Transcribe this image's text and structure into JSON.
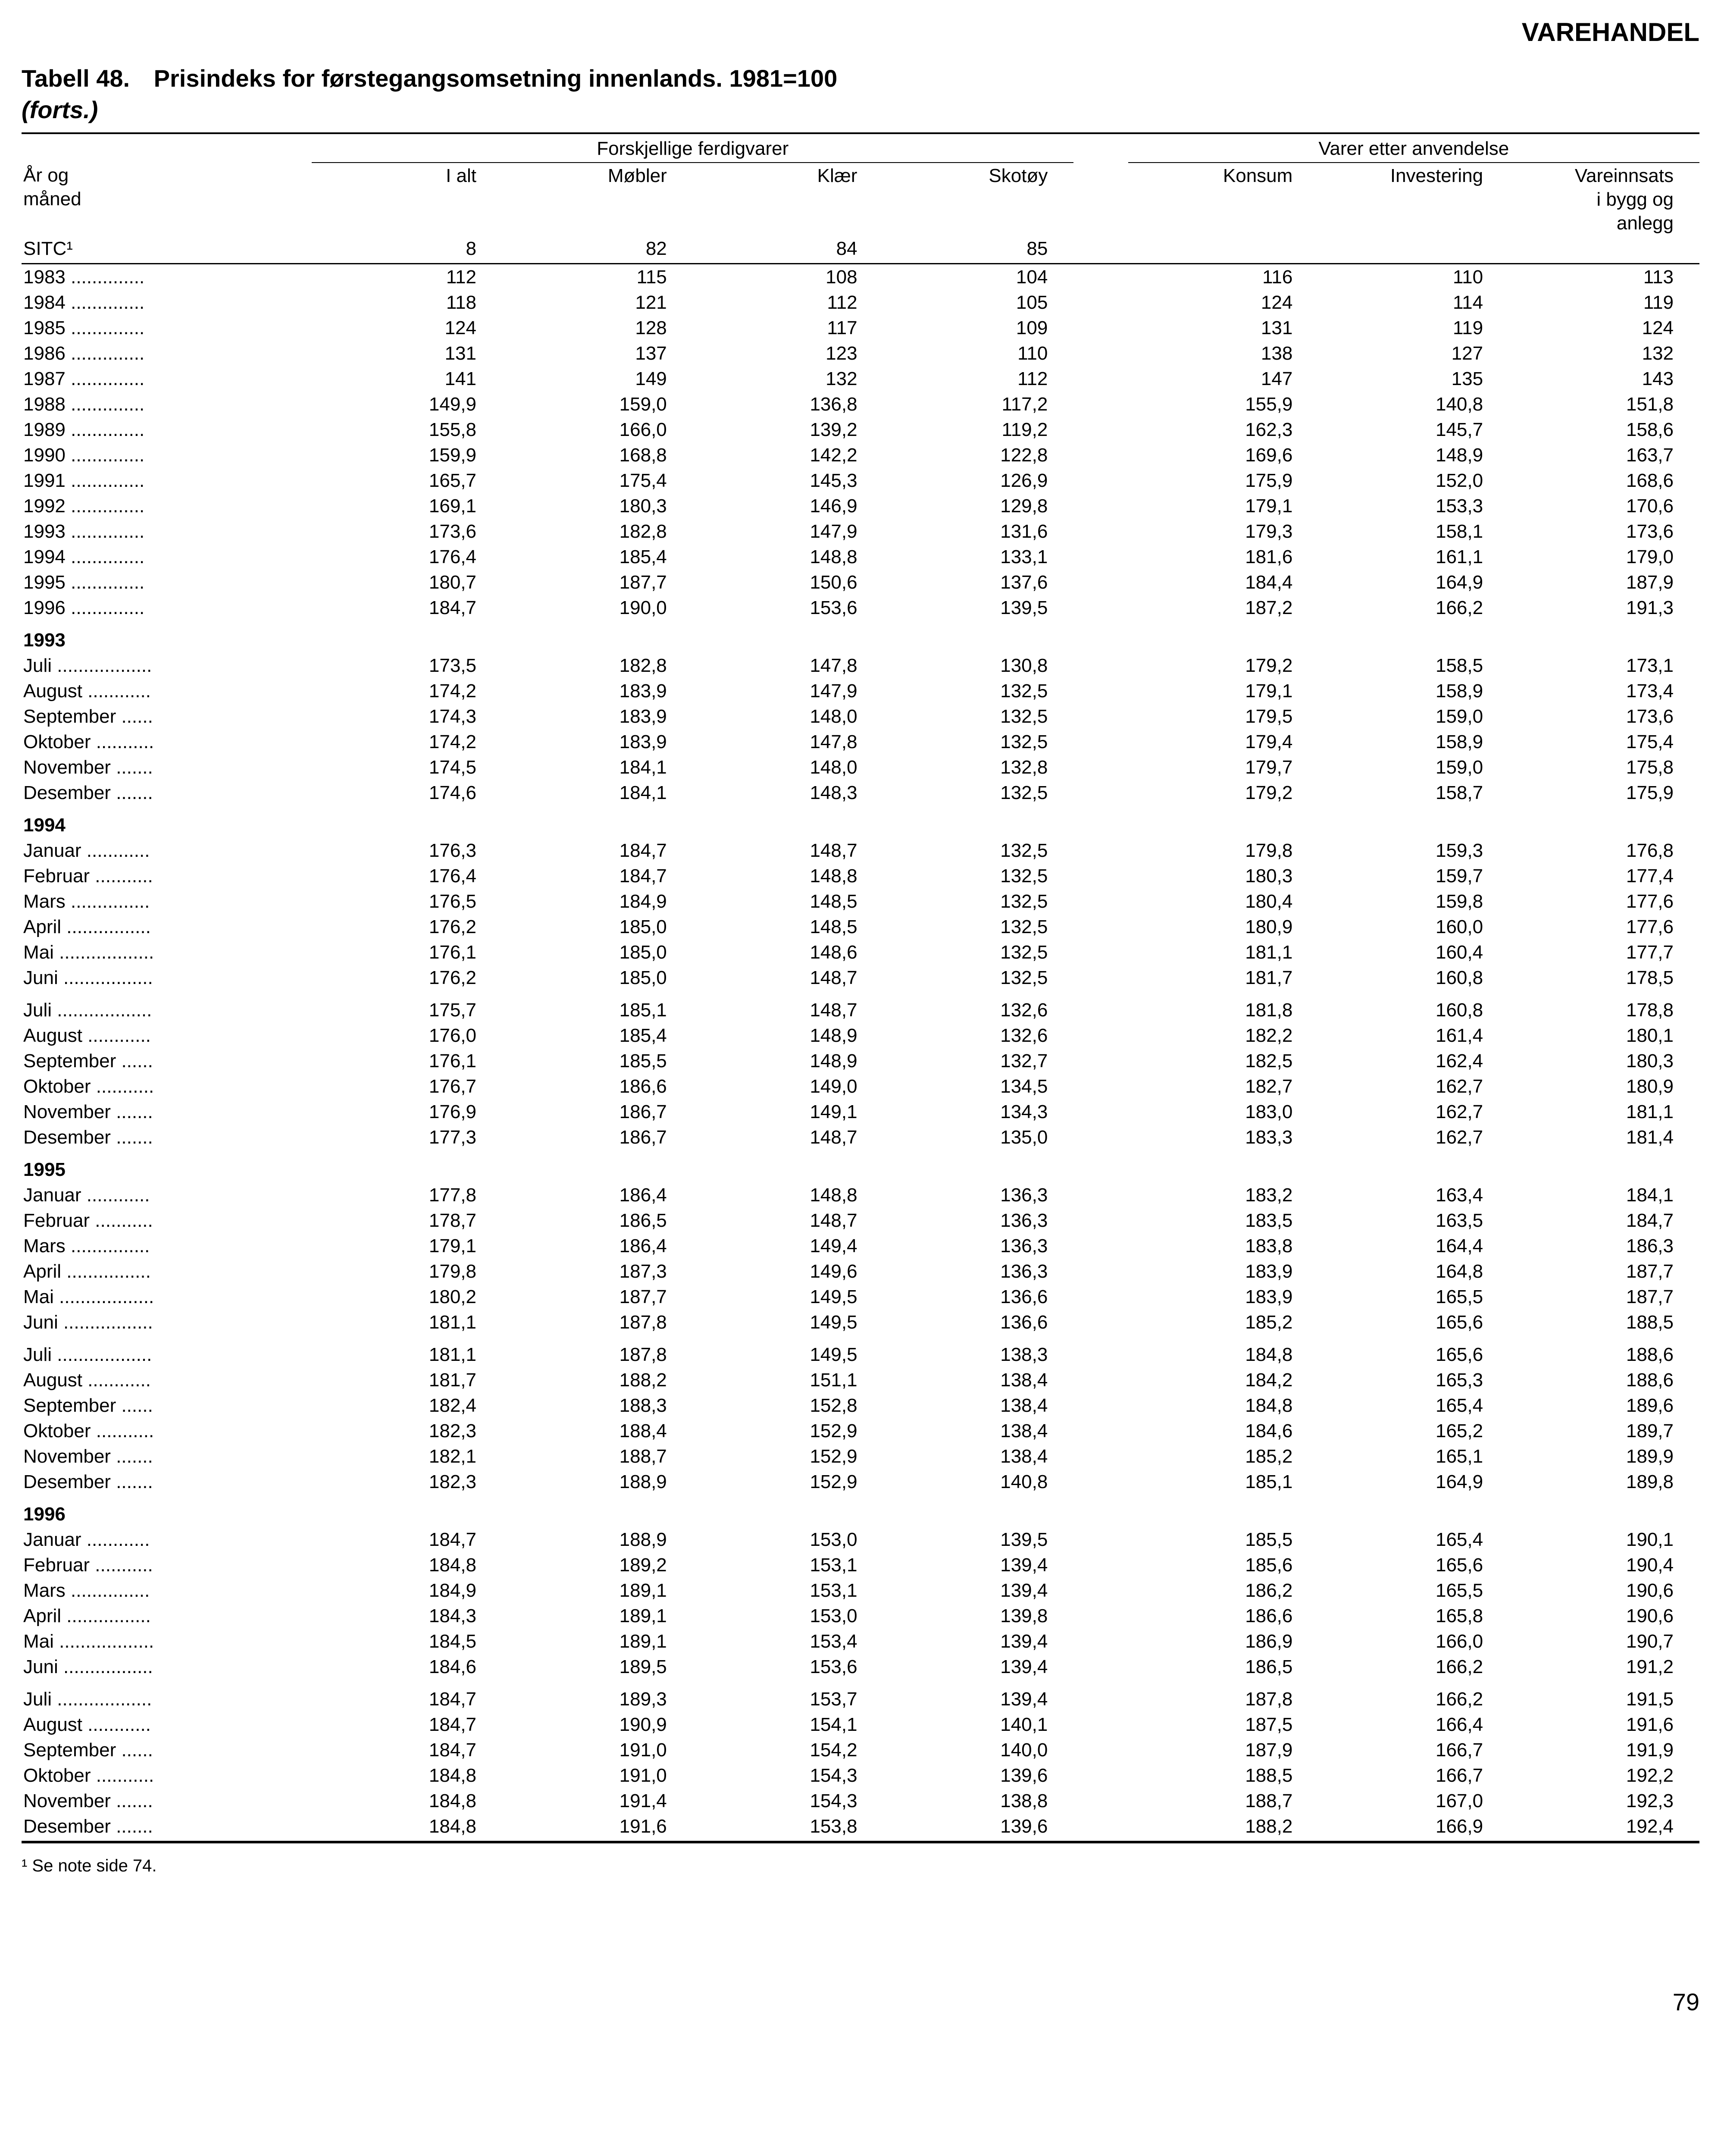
{
  "page": {
    "section_header": "VAREHANDEL",
    "table_number": "Tabell 48.",
    "table_title": "Prisindeks for førstegangsomsetning innenlands. 1981=100",
    "continuation": "(forts.)",
    "footnote": "¹ Se note side 74.",
    "page_number": "79"
  },
  "headers": {
    "group1": "Forskjellige ferdigvarer",
    "group2": "Varer etter anvendelse",
    "row_label_1": "År og",
    "row_label_2": "måned",
    "sitc_label": "SITC¹",
    "cols": {
      "ialt": "I alt",
      "mobler": "Møbler",
      "klaer": "Klær",
      "skotoy": "Skotøy",
      "konsum": "Konsum",
      "invest": "Investering",
      "vare1": "Vareinnsats",
      "vare2": "i bygg og",
      "vare3": "anlegg"
    },
    "sitc": {
      "ialt": "8",
      "mobler": "82",
      "klaer": "84",
      "skotoy": "85"
    }
  },
  "rows": [
    {
      "type": "data",
      "label": "1983 ..............",
      "v": [
        "112",
        "115",
        "108",
        "104",
        "116",
        "110",
        "113"
      ]
    },
    {
      "type": "data",
      "label": "1984 ..............",
      "v": [
        "118",
        "121",
        "112",
        "105",
        "124",
        "114",
        "119"
      ]
    },
    {
      "type": "data",
      "label": "1985 ..............",
      "v": [
        "124",
        "128",
        "117",
        "109",
        "131",
        "119",
        "124"
      ]
    },
    {
      "type": "data",
      "label": "1986 ..............",
      "v": [
        "131",
        "137",
        "123",
        "110",
        "138",
        "127",
        "132"
      ]
    },
    {
      "type": "data",
      "label": "1987 ..............",
      "v": [
        "141",
        "149",
        "132",
        "112",
        "147",
        "135",
        "143"
      ]
    },
    {
      "type": "data",
      "label": "1988 ..............",
      "v": [
        "149,9",
        "159,0",
        "136,8",
        "117,2",
        "155,9",
        "140,8",
        "151,8"
      ]
    },
    {
      "type": "data",
      "label": "1989 ..............",
      "v": [
        "155,8",
        "166,0",
        "139,2",
        "119,2",
        "162,3",
        "145,7",
        "158,6"
      ]
    },
    {
      "type": "data",
      "label": "1990 ..............",
      "v": [
        "159,9",
        "168,8",
        "142,2",
        "122,8",
        "169,6",
        "148,9",
        "163,7"
      ]
    },
    {
      "type": "data",
      "label": "1991 ..............",
      "v": [
        "165,7",
        "175,4",
        "145,3",
        "126,9",
        "175,9",
        "152,0",
        "168,6"
      ]
    },
    {
      "type": "data",
      "label": "1992 ..............",
      "v": [
        "169,1",
        "180,3",
        "146,9",
        "129,8",
        "179,1",
        "153,3",
        "170,6"
      ]
    },
    {
      "type": "data",
      "label": "1993 ..............",
      "v": [
        "173,6",
        "182,8",
        "147,9",
        "131,6",
        "179,3",
        "158,1",
        "173,6"
      ]
    },
    {
      "type": "data",
      "label": "1994 ..............",
      "v": [
        "176,4",
        "185,4",
        "148,8",
        "133,1",
        "181,6",
        "161,1",
        "179,0"
      ]
    },
    {
      "type": "data",
      "label": "1995 ..............",
      "v": [
        "180,7",
        "187,7",
        "150,6",
        "137,6",
        "184,4",
        "164,9",
        "187,9"
      ]
    },
    {
      "type": "data",
      "label": "1996 ..............",
      "v": [
        "184,7",
        "190,0",
        "153,6",
        "139,5",
        "187,2",
        "166,2",
        "191,3"
      ]
    },
    {
      "type": "year",
      "label": "1993"
    },
    {
      "type": "data",
      "label": "Juli ..................",
      "v": [
        "173,5",
        "182,8",
        "147,8",
        "130,8",
        "179,2",
        "158,5",
        "173,1"
      ]
    },
    {
      "type": "data",
      "label": "August ............",
      "v": [
        "174,2",
        "183,9",
        "147,9",
        "132,5",
        "179,1",
        "158,9",
        "173,4"
      ]
    },
    {
      "type": "data",
      "label": "September ......",
      "v": [
        "174,3",
        "183,9",
        "148,0",
        "132,5",
        "179,5",
        "159,0",
        "173,6"
      ]
    },
    {
      "type": "data",
      "label": "Oktober ...........",
      "v": [
        "174,2",
        "183,9",
        "147,8",
        "132,5",
        "179,4",
        "158,9",
        "175,4"
      ]
    },
    {
      "type": "data",
      "label": "November .......",
      "v": [
        "174,5",
        "184,1",
        "148,0",
        "132,8",
        "179,7",
        "159,0",
        "175,8"
      ]
    },
    {
      "type": "data",
      "label": "Desember .......",
      "v": [
        "174,6",
        "184,1",
        "148,3",
        "132,5",
        "179,2",
        "158,7",
        "175,9"
      ]
    },
    {
      "type": "year",
      "label": "1994"
    },
    {
      "type": "data",
      "label": "Januar ............",
      "v": [
        "176,3",
        "184,7",
        "148,7",
        "132,5",
        "179,8",
        "159,3",
        "176,8"
      ]
    },
    {
      "type": "data",
      "label": "Februar ...........",
      "v": [
        "176,4",
        "184,7",
        "148,8",
        "132,5",
        "180,3",
        "159,7",
        "177,4"
      ]
    },
    {
      "type": "data",
      "label": "Mars ...............",
      "v": [
        "176,5",
        "184,9",
        "148,5",
        "132,5",
        "180,4",
        "159,8",
        "177,6"
      ]
    },
    {
      "type": "data",
      "label": "April ................",
      "v": [
        "176,2",
        "185,0",
        "148,5",
        "132,5",
        "180,9",
        "160,0",
        "177,6"
      ]
    },
    {
      "type": "data",
      "label": "Mai ..................",
      "v": [
        "176,1",
        "185,0",
        "148,6",
        "132,5",
        "181,1",
        "160,4",
        "177,7"
      ]
    },
    {
      "type": "data",
      "label": "Juni .................",
      "v": [
        "176,2",
        "185,0",
        "148,7",
        "132,5",
        "181,7",
        "160,8",
        "178,5"
      ]
    },
    {
      "type": "data",
      "gap": true,
      "label": "Juli ..................",
      "v": [
        "175,7",
        "185,1",
        "148,7",
        "132,6",
        "181,8",
        "160,8",
        "178,8"
      ]
    },
    {
      "type": "data",
      "label": "August ............",
      "v": [
        "176,0",
        "185,4",
        "148,9",
        "132,6",
        "182,2",
        "161,4",
        "180,1"
      ]
    },
    {
      "type": "data",
      "label": "September ......",
      "v": [
        "176,1",
        "185,5",
        "148,9",
        "132,7",
        "182,5",
        "162,4",
        "180,3"
      ]
    },
    {
      "type": "data",
      "label": "Oktober ...........",
      "v": [
        "176,7",
        "186,6",
        "149,0",
        "134,5",
        "182,7",
        "162,7",
        "180,9"
      ]
    },
    {
      "type": "data",
      "label": "November .......",
      "v": [
        "176,9",
        "186,7",
        "149,1",
        "134,3",
        "183,0",
        "162,7",
        "181,1"
      ]
    },
    {
      "type": "data",
      "label": "Desember .......",
      "v": [
        "177,3",
        "186,7",
        "148,7",
        "135,0",
        "183,3",
        "162,7",
        "181,4"
      ]
    },
    {
      "type": "year",
      "label": "1995"
    },
    {
      "type": "data",
      "label": "Januar ............",
      "v": [
        "177,8",
        "186,4",
        "148,8",
        "136,3",
        "183,2",
        "163,4",
        "184,1"
      ]
    },
    {
      "type": "data",
      "label": "Februar ...........",
      "v": [
        "178,7",
        "186,5",
        "148,7",
        "136,3",
        "183,5",
        "163,5",
        "184,7"
      ]
    },
    {
      "type": "data",
      "label": "Mars ...............",
      "v": [
        "179,1",
        "186,4",
        "149,4",
        "136,3",
        "183,8",
        "164,4",
        "186,3"
      ]
    },
    {
      "type": "data",
      "label": "April ................",
      "v": [
        "179,8",
        "187,3",
        "149,6",
        "136,3",
        "183,9",
        "164,8",
        "187,7"
      ]
    },
    {
      "type": "data",
      "label": "Mai ..................",
      "v": [
        "180,2",
        "187,7",
        "149,5",
        "136,6",
        "183,9",
        "165,5",
        "187,7"
      ]
    },
    {
      "type": "data",
      "label": "Juni .................",
      "v": [
        "181,1",
        "187,8",
        "149,5",
        "136,6",
        "185,2",
        "165,6",
        "188,5"
      ]
    },
    {
      "type": "data",
      "gap": true,
      "label": "Juli ..................",
      "v": [
        "181,1",
        "187,8",
        "149,5",
        "138,3",
        "184,8",
        "165,6",
        "188,6"
      ]
    },
    {
      "type": "data",
      "label": "August ............",
      "v": [
        "181,7",
        "188,2",
        "151,1",
        "138,4",
        "184,2",
        "165,3",
        "188,6"
      ]
    },
    {
      "type": "data",
      "label": "September ......",
      "v": [
        "182,4",
        "188,3",
        "152,8",
        "138,4",
        "184,8",
        "165,4",
        "189,6"
      ]
    },
    {
      "type": "data",
      "label": "Oktober ...........",
      "v": [
        "182,3",
        "188,4",
        "152,9",
        "138,4",
        "184,6",
        "165,2",
        "189,7"
      ]
    },
    {
      "type": "data",
      "label": "November .......",
      "v": [
        "182,1",
        "188,7",
        "152,9",
        "138,4",
        "185,2",
        "165,1",
        "189,9"
      ]
    },
    {
      "type": "data",
      "label": "Desember .......",
      "v": [
        "182,3",
        "188,9",
        "152,9",
        "140,8",
        "185,1",
        "164,9",
        "189,8"
      ]
    },
    {
      "type": "year",
      "label": "1996"
    },
    {
      "type": "data",
      "label": "Januar ............",
      "v": [
        "184,7",
        "188,9",
        "153,0",
        "139,5",
        "185,5",
        "165,4",
        "190,1"
      ]
    },
    {
      "type": "data",
      "label": "Februar ...........",
      "v": [
        "184,8",
        "189,2",
        "153,1",
        "139,4",
        "185,6",
        "165,6",
        "190,4"
      ]
    },
    {
      "type": "data",
      "label": "Mars ...............",
      "v": [
        "184,9",
        "189,1",
        "153,1",
        "139,4",
        "186,2",
        "165,5",
        "190,6"
      ]
    },
    {
      "type": "data",
      "label": "April ................",
      "v": [
        "184,3",
        "189,1",
        "153,0",
        "139,8",
        "186,6",
        "165,8",
        "190,6"
      ]
    },
    {
      "type": "data",
      "label": "Mai ..................",
      "v": [
        "184,5",
        "189,1",
        "153,4",
        "139,4",
        "186,9",
        "166,0",
        "190,7"
      ]
    },
    {
      "type": "data",
      "label": "Juni .................",
      "v": [
        "184,6",
        "189,5",
        "153,6",
        "139,4",
        "186,5",
        "166,2",
        "191,2"
      ]
    },
    {
      "type": "data",
      "gap": true,
      "label": "Juli ..................",
      "v": [
        "184,7",
        "189,3",
        "153,7",
        "139,4",
        "187,8",
        "166,2",
        "191,5"
      ]
    },
    {
      "type": "data",
      "label": "August ............",
      "v": [
        "184,7",
        "190,9",
        "154,1",
        "140,1",
        "187,5",
        "166,4",
        "191,6"
      ]
    },
    {
      "type": "data",
      "label": "September ......",
      "v": [
        "184,7",
        "191,0",
        "154,2",
        "140,0",
        "187,9",
        "166,7",
        "191,9"
      ]
    },
    {
      "type": "data",
      "label": "Oktober ...........",
      "v": [
        "184,8",
        "191,0",
        "154,3",
        "139,6",
        "188,5",
        "166,7",
        "192,2"
      ]
    },
    {
      "type": "data",
      "label": "November .......",
      "v": [
        "184,8",
        "191,4",
        "154,3",
        "138,8",
        "188,7",
        "167,0",
        "192,3"
      ]
    },
    {
      "type": "data",
      "label": "Desember .......",
      "v": [
        "184,8",
        "191,6",
        "153,8",
        "139,6",
        "188,2",
        "166,9",
        "192,4"
      ]
    }
  ]
}
